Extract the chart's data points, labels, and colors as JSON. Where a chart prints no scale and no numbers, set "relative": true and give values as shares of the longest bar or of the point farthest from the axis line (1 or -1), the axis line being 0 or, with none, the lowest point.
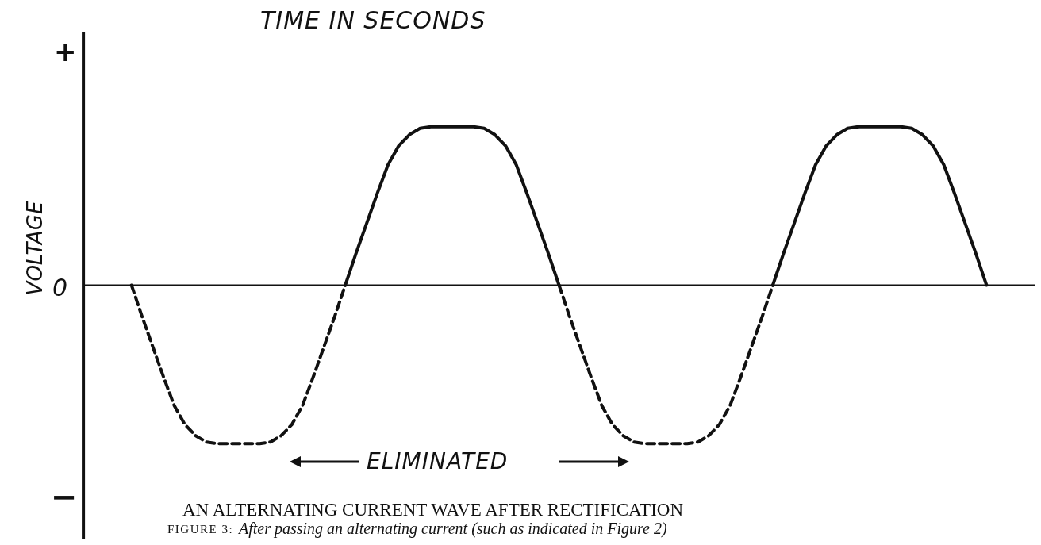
{
  "chart_data": {
    "type": "line",
    "relative": true,
    "xlabel": "TIME IN SECONDS",
    "ylabel": "VOLTAGE",
    "title": "AN ALTERNATING CURRENT WAVE AFTER RECTIFICATION",
    "categories": [
      null,
      null,
      null,
      null,
      null,
      null,
      null,
      null,
      null,
      null,
      null,
      null,
      null,
      null,
      null,
      null,
      null,
      null,
      null,
      null,
      null,
      null,
      null,
      null,
      null,
      null,
      null,
      null,
      null,
      null,
      null,
      null,
      null,
      null,
      null,
      null,
      null,
      null,
      null,
      null,
      null,
      null,
      null,
      null,
      null,
      null,
      null,
      null,
      null,
      null,
      null,
      null,
      null,
      null,
      null,
      null,
      null,
      null,
      null,
      null,
      null,
      null,
      null,
      null,
      null,
      null,
      null,
      null,
      null,
      null,
      null,
      null,
      null,
      null,
      null,
      null,
      null,
      null,
      null,
      null,
      null,
      null,
      null,
      null,
      null,
      null,
      null,
      null,
      null
    ],
    "series": [
      {
        "color": "#111111",
        "line_style": "dashed",
        "values": [
          null,
          null,
          null,
          null,
          0,
          -0.2,
          -0.39,
          -0.58,
          -0.76,
          -0.88,
          -0.95,
          -0.99,
          -1,
          -1,
          -1,
          -1,
          -1,
          -0.99,
          -0.95,
          -0.88,
          -0.76,
          -0.58,
          -0.39,
          -0.2,
          0,
          null,
          null,
          null,
          null,
          null,
          null,
          null,
          null,
          null,
          null,
          null,
          null,
          null,
          null,
          null,
          null,
          null,
          null,
          null,
          null,
          null,
          null,
          null,
          null,
          null,
          null,
          null,
          null,
          null,
          null,
          null,
          null,
          null,
          null,
          null,
          null,
          null,
          null,
          null,
          null,
          null,
          null,
          null,
          null,
          null,
          null,
          null,
          null,
          null,
          null,
          null,
          null,
          null,
          null,
          null,
          null,
          null,
          null,
          null,
          null,
          null,
          null,
          null,
          null
        ]
      },
      {
        "color": "#111111",
        "line_style": "solid",
        "values": [
          null,
          null,
          null,
          null,
          null,
          null,
          null,
          null,
          null,
          null,
          null,
          null,
          null,
          null,
          null,
          null,
          null,
          null,
          null,
          null,
          null,
          null,
          null,
          null,
          0,
          0.2,
          0.39,
          0.58,
          0.76,
          0.88,
          0.95,
          0.99,
          1,
          1,
          1,
          1,
          1,
          0.99,
          0.95,
          0.88,
          0.76,
          0.58,
          0.39,
          0.2,
          0,
          null,
          null,
          null,
          null,
          null,
          null,
          null,
          null,
          null,
          null,
          null,
          null,
          null,
          null,
          null,
          null,
          null,
          null,
          null,
          null,
          null,
          null,
          null,
          null,
          null,
          null,
          null,
          null,
          null,
          null,
          null,
          null,
          null,
          null,
          null,
          null,
          null,
          null,
          null,
          null,
          null,
          null,
          null,
          null
        ]
      },
      {
        "color": "#111111",
        "line_style": "dashed",
        "values": [
          null,
          null,
          null,
          null,
          null,
          null,
          null,
          null,
          null,
          null,
          null,
          null,
          null,
          null,
          null,
          null,
          null,
          null,
          null,
          null,
          null,
          null,
          null,
          null,
          null,
          null,
          null,
          null,
          null,
          null,
          null,
          null,
          null,
          null,
          null,
          null,
          null,
          null,
          null,
          null,
          null,
          null,
          null,
          null,
          0,
          -0.2,
          -0.39,
          -0.58,
          -0.76,
          -0.88,
          -0.95,
          -0.99,
          -1,
          -1,
          -1,
          -1,
          -1,
          -0.99,
          -0.95,
          -0.88,
          -0.76,
          -0.58,
          -0.39,
          -0.2,
          0,
          null,
          null,
          null,
          null,
          null,
          null,
          null,
          null,
          null,
          null,
          null,
          null,
          null,
          null,
          null,
          null,
          null,
          null,
          null,
          null,
          null,
          null,
          null,
          null
        ]
      },
      {
        "color": "#111111",
        "line_style": "solid",
        "values": [
          null,
          null,
          null,
          null,
          null,
          null,
          null,
          null,
          null,
          null,
          null,
          null,
          null,
          null,
          null,
          null,
          null,
          null,
          null,
          null,
          null,
          null,
          null,
          null,
          null,
          null,
          null,
          null,
          null,
          null,
          null,
          null,
          null,
          null,
          null,
          null,
          null,
          null,
          null,
          null,
          null,
          null,
          null,
          null,
          null,
          null,
          null,
          null,
          null,
          null,
          null,
          null,
          null,
          null,
          null,
          null,
          null,
          null,
          null,
          null,
          null,
          null,
          null,
          null,
          0,
          0.2,
          0.39,
          0.58,
          0.76,
          0.88,
          0.95,
          0.99,
          1,
          1,
          1,
          1,
          1,
          0.99,
          0.95,
          0.88,
          0.76,
          0.58,
          0.39,
          0.2,
          0,
          null,
          null,
          null,
          null
        ]
      }
    ],
    "annotations": [
      "+",
      "0",
      "−",
      "ELIMINATED",
      "FIGURE 3:",
      "After passing an alternating current (such as indicated in Figure 2)"
    ]
  }
}
